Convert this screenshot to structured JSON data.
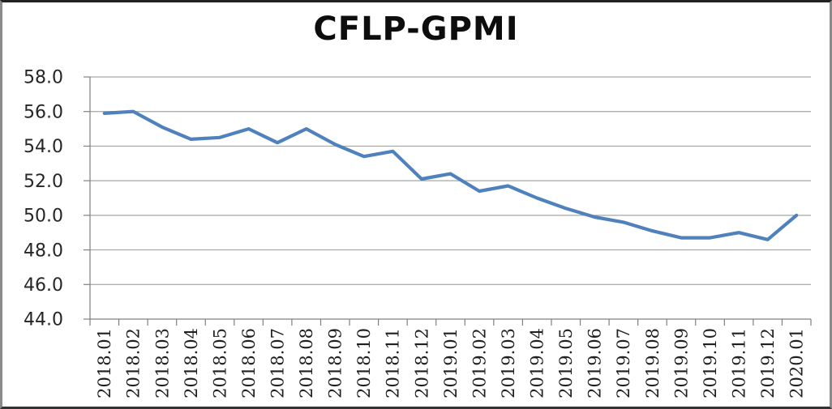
{
  "window": {
    "background": "#ffffff",
    "border_color": "#444444"
  },
  "chart_data": {
    "type": "line",
    "title": "CFLP-GPMI",
    "categories": [
      "2018.01",
      "2018.02",
      "2018.03",
      "2018.04",
      "2018.05",
      "2018.06",
      "2018.07",
      "2018.08",
      "2018.09",
      "2018.10",
      "2018.11",
      "2018.12",
      "2019.01",
      "2019.02",
      "2019.03",
      "2019.04",
      "2019.05",
      "2019.06",
      "2019.07",
      "2019.08",
      "2019.09",
      "2019.10",
      "2019.11",
      "2019.12",
      "2020.01"
    ],
    "series": [
      {
        "name": "CFLP-GPMI",
        "color": "#4F81BD",
        "values": [
          55.9,
          56.0,
          55.1,
          54.4,
          54.5,
          55.0,
          54.2,
          55.0,
          54.1,
          53.4,
          53.7,
          52.1,
          52.4,
          51.4,
          51.7,
          51.0,
          50.4,
          49.9,
          49.6,
          49.1,
          48.7,
          48.7,
          49.0,
          48.6,
          50.0
        ]
      }
    ],
    "xlabel": "",
    "ylabel": "",
    "ylim": [
      44.0,
      58.0
    ],
    "ytick_step": 2.0,
    "ytick_labels": [
      "44.0",
      "46.0",
      "48.0",
      "50.0",
      "52.0",
      "54.0",
      "56.0",
      "58.0"
    ],
    "x_label_rotation": -90,
    "grid": "horizontal",
    "legend": "none",
    "colors": {
      "line": "#4F81BD",
      "gridline": "#a6a6a6",
      "axis": "#808080",
      "tick_text": "#262626",
      "title_text": "#0d0d0d"
    }
  }
}
